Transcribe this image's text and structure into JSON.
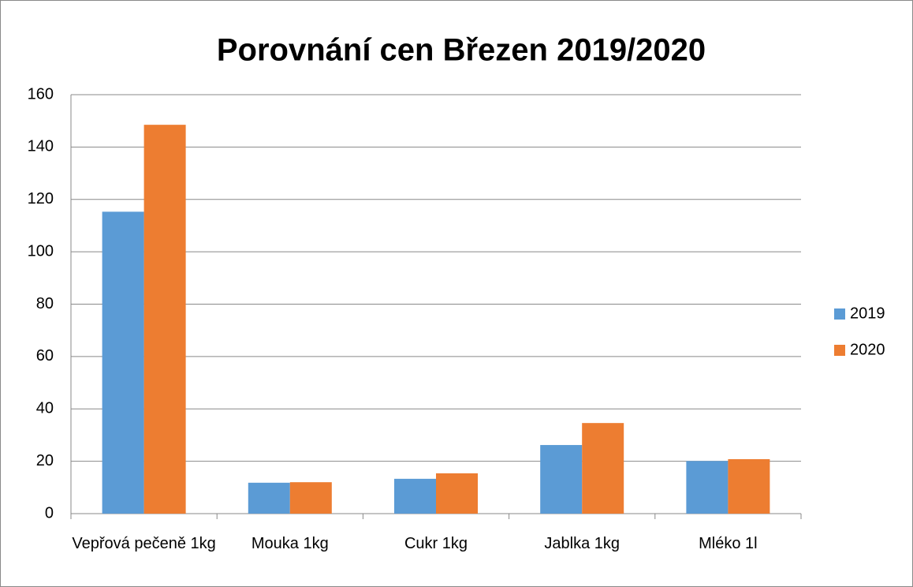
{
  "chart_data": {
    "type": "bar",
    "title": "Porovnání cen Březen 2019/2020",
    "categories": [
      "Vepřová pečeně 1kg",
      "Mouka 1kg",
      "Cukr 1kg",
      "Jablka 1kg",
      "Mléko 1l"
    ],
    "series": [
      {
        "name": "2019",
        "color": "#5b9bd5",
        "values": [
          115.3,
          11.8,
          13.3,
          26.2,
          20.1
        ]
      },
      {
        "name": "2020",
        "color": "#ed7d31",
        "values": [
          148.5,
          12.0,
          15.4,
          34.6,
          20.8
        ]
      }
    ],
    "ylim": [
      0,
      160
    ],
    "yticks": [
      0,
      20,
      40,
      60,
      80,
      100,
      120,
      140,
      160
    ],
    "grid": true,
    "legend": "right"
  }
}
